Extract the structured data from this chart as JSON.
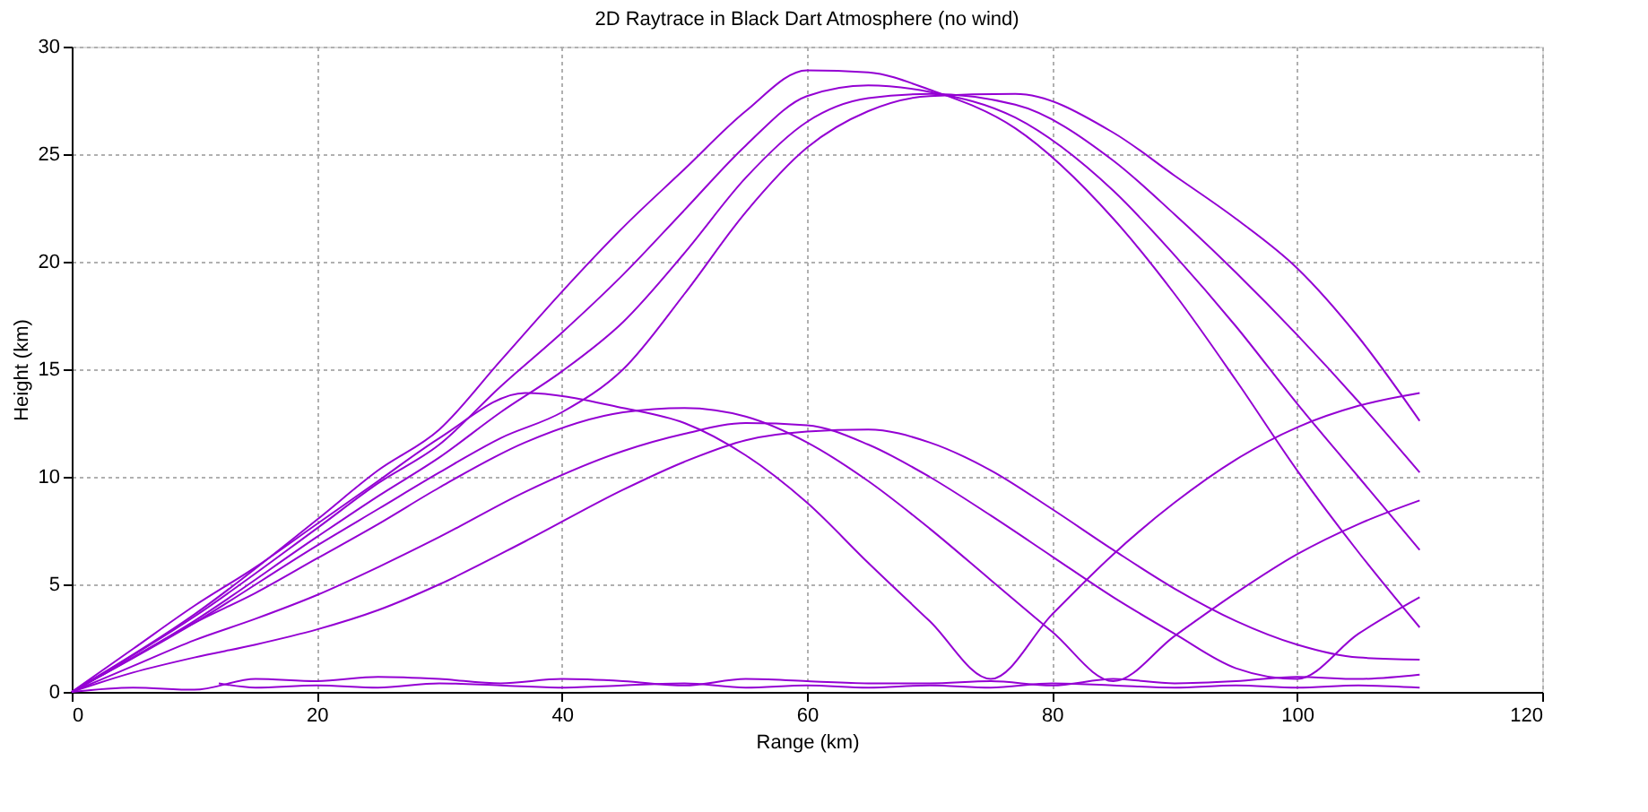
{
  "chart_data": {
    "type": "line",
    "title": "2D Raytrace in Black Dart Atmosphere (no wind)",
    "xlabel": "Range (km)",
    "ylabel": "Height (km)",
    "xlim": [
      0,
      120
    ],
    "xticks": [
      0,
      20,
      40,
      60,
      80,
      100,
      120
    ],
    "ylim": [
      0,
      30
    ],
    "yticks": [
      0,
      5,
      10,
      15,
      20,
      25,
      30
    ],
    "grid": true,
    "marker": "none",
    "line_style": "solid",
    "series": [
      {
        "color": "#9400d3",
        "x": [
          0,
          10,
          20,
          25,
          30,
          35,
          40,
          45,
          50,
          55,
          60,
          65,
          70,
          77,
          85,
          90,
          95,
          100,
          105,
          110
        ],
        "values": [
          0,
          3.6,
          8,
          10.3,
          12.2,
          15.4,
          18.6,
          21.6,
          24.3,
          27,
          28.9,
          28.8,
          28,
          26.2,
          22,
          18.5,
          14.5,
          10.3,
          6.5,
          3
        ]
      },
      {
        "color": "#9400d3",
        "x": [
          0,
          10,
          20,
          25,
          30,
          35,
          40,
          45,
          50,
          55,
          60,
          65,
          70,
          77,
          85,
          90,
          95,
          100,
          105,
          110
        ],
        "values": [
          0,
          3.5,
          7.6,
          9.7,
          11.5,
          14.2,
          16.7,
          19.4,
          22.4,
          25.4,
          27.7,
          28.2,
          27.9,
          26.7,
          23.3,
          20.3,
          17,
          13.4,
          10,
          6.6
        ]
      },
      {
        "color": "#9400d3",
        "x": [
          0,
          10,
          20,
          25,
          30,
          35,
          40,
          45,
          50,
          55,
          60,
          65,
          70,
          77,
          85,
          90,
          95,
          100,
          105,
          110
        ],
        "values": [
          0,
          3.3,
          7.2,
          9.1,
          10.9,
          13,
          14.9,
          17.2,
          20.4,
          23.9,
          26.5,
          27.6,
          27.8,
          27.3,
          24.7,
          22.2,
          19.5,
          16.6,
          13.5,
          10.2
        ]
      },
      {
        "color": "#9400d3",
        "x": [
          0,
          10,
          20,
          25,
          30,
          35,
          40,
          45,
          50,
          55,
          60,
          65,
          70,
          77,
          85,
          90,
          95,
          100,
          105,
          110
        ],
        "values": [
          0,
          3.2,
          6.8,
          8.5,
          10.2,
          11.8,
          13,
          15,
          18.5,
          22.3,
          25.3,
          27,
          27.7,
          27.8,
          26,
          24,
          22,
          19.7,
          16.5,
          12.6
        ]
      },
      {
        "color": "#9400d3",
        "x": [
          0,
          5,
          10,
          15,
          20,
          25,
          30,
          37,
          45,
          50,
          55,
          60,
          65,
          70,
          75,
          80,
          85,
          90,
          95,
          100,
          105,
          110
        ],
        "values": [
          0,
          2,
          4,
          5.8,
          7.8,
          9.8,
          11.8,
          13.9,
          13.2,
          12.5,
          11,
          8.8,
          6,
          3.3,
          0.6,
          3.6,
          6.4,
          8.8,
          10.8,
          12.3,
          13.3,
          13.9
        ]
      },
      {
        "color": "#9400d3",
        "x": [
          0,
          5,
          10,
          15,
          20,
          25,
          30,
          37,
          45,
          50,
          55,
          60,
          65,
          70,
          75,
          80,
          85,
          90,
          95,
          100,
          105,
          110
        ],
        "values": [
          0,
          1.6,
          3.2,
          4.6,
          6.2,
          7.8,
          9.5,
          11.6,
          13,
          13.2,
          12.8,
          11.6,
          9.8,
          7.6,
          5.2,
          2.8,
          0.5,
          2.6,
          4.6,
          6.4,
          7.8,
          8.9
        ]
      },
      {
        "color": "#9400d3",
        "x": [
          0,
          5,
          10,
          15,
          20,
          25,
          30,
          37,
          45,
          50,
          55,
          60,
          65,
          70,
          75,
          80,
          85,
          90,
          95,
          100,
          105,
          110
        ],
        "values": [
          0,
          1.2,
          2.4,
          3.4,
          4.5,
          5.8,
          7.2,
          9.3,
          11.2,
          12,
          12.5,
          12.4,
          11.5,
          10,
          8.2,
          6.3,
          4.4,
          2.7,
          1.1,
          0.6,
          2.7,
          4.4
        ]
      },
      {
        "color": "#9400d3",
        "x": [
          0,
          5,
          10,
          15,
          20,
          25,
          30,
          37,
          45,
          50,
          55,
          60,
          65,
          70,
          75,
          80,
          85,
          90,
          95,
          100,
          105,
          110
        ],
        "values": [
          0,
          0.9,
          1.6,
          2.2,
          2.9,
          3.8,
          5,
          7,
          9.4,
          10.7,
          11.7,
          12.1,
          12.2,
          11.6,
          10.3,
          8.5,
          6.6,
          4.8,
          3.3,
          2.2,
          1.6,
          1.5
        ]
      },
      {
        "color": "#9400d3",
        "x": [
          0,
          5,
          10,
          15,
          20,
          25,
          30,
          35,
          40,
          45,
          50,
          55,
          60,
          65,
          70,
          75,
          80,
          85,
          90,
          95,
          100,
          105,
          110
        ],
        "values": [
          0,
          0.2,
          0.1,
          0.6,
          0.5,
          0.7,
          0.6,
          0.4,
          0.6,
          0.5,
          0.3,
          0.6,
          0.5,
          0.4,
          0.4,
          0.5,
          0.3,
          0.6,
          0.4,
          0.5,
          0.7,
          0.6,
          0.8
        ]
      },
      {
        "color": "#9400d3",
        "x": [
          12,
          15,
          20,
          25,
          30,
          35,
          40,
          45,
          50,
          55,
          60,
          65,
          70,
          75,
          80,
          85,
          90,
          95,
          100,
          105,
          110
        ],
        "values": [
          0.4,
          0.2,
          0.3,
          0.2,
          0.4,
          0.3,
          0.2,
          0.3,
          0.4,
          0.2,
          0.3,
          0.2,
          0.3,
          0.2,
          0.4,
          0.3,
          0.2,
          0.3,
          0.2,
          0.3,
          0.2
        ]
      }
    ]
  }
}
